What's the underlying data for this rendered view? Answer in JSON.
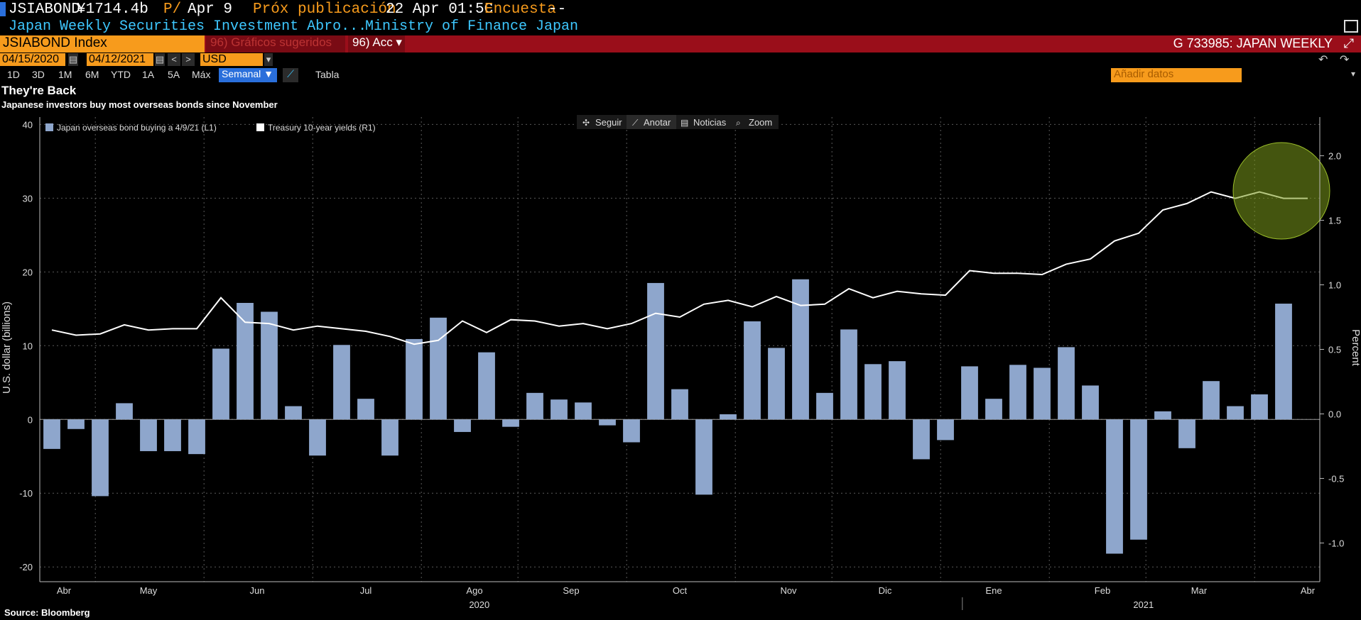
{
  "header": {
    "ticker": "JSIABOND",
    "value": "¥1714.4b",
    "p_label": "P/",
    "date": "Apr 9",
    "next_pub_label": "Próx publicación",
    "next_pub_value": "22 Apr 01:5C",
    "survey_label": "Encuesta",
    "survey_value": "--",
    "description": "Japan Weekly Securities Investment Abro...",
    "source_name": "Ministry of Finance Japan"
  },
  "security_bar": {
    "security": "JSIABOND Index",
    "suggested_charts": "96) Gráficos sugeridos",
    "actions": "96) Acc ▾",
    "right_text": "G 733985: JAPAN WEEKLY",
    "close_glyph": "⤢"
  },
  "date_bar": {
    "start_date": "04/15/2020",
    "end_date": "04/12/2021",
    "currency": "USD",
    "nav_prev": "<",
    "nav_next": ">",
    "undo": "↶",
    "redo": "↷"
  },
  "toolbar": {
    "periods": [
      "1D",
      "3D",
      "1M",
      "6M",
      "YTD",
      "1A",
      "5A",
      "Máx"
    ],
    "frequency": "Semanal ▼",
    "table_label": "Tabla",
    "add_data_placeholder": "Añadir datos",
    "menu_glyph": "▾"
  },
  "chart_tools": {
    "follow": "Seguir",
    "annotate": "Anotar",
    "news": "Noticias",
    "zoom": "Zoom"
  },
  "title": "They're Back",
  "subtitle": "Japanese investors buy most overseas bonds since November",
  "source": "Source: Bloomberg",
  "colors": {
    "bar": "#8ea6cc",
    "line": "#ffffff",
    "accent": "#f79b1c",
    "bar_header": "#9a0e1a",
    "highlight": "#7c9a1c"
  },
  "chart_data": {
    "type": "bar+line",
    "legend": [
      {
        "name": "Japan overseas bond buying  a 4/9/21 (L1)",
        "color": "#8ea6cc"
      },
      {
        "name": "Treasury 10-year yields (R1)",
        "color": "#ffffff"
      }
    ],
    "ylabel_left": "U.S. dollar (billions)",
    "ylabel_right": "Percent",
    "ylim_left": [
      -22,
      41
    ],
    "ylim_right": [
      -1.3,
      2.3
    ],
    "left_ticks": [
      40,
      30,
      20,
      10,
      0,
      -10,
      -20
    ],
    "right_ticks": [
      "2.0",
      "1.5",
      "1.0",
      "0.5",
      "0.0",
      "-0.5",
      "-1.0"
    ],
    "right_tick_values": [
      2.0,
      1.5,
      1.0,
      0.5,
      0.0,
      -0.5,
      -1.0
    ],
    "x_month_labels": [
      "Abr",
      "May",
      "Jun",
      "Jul",
      "Ago",
      "Sep",
      "Oct",
      "Nov",
      "Dic",
      "Ene",
      "Feb",
      "Mar",
      "Abr"
    ],
    "x_month_positions": [
      1,
      4.5,
      9,
      13.5,
      18,
      22,
      26.5,
      31,
      35,
      39.5,
      44,
      48,
      52.5
    ],
    "x_year_labels": [
      "2020",
      "2021"
    ],
    "x_year_positions": [
      18.2,
      45.7
    ],
    "bars": [
      -4,
      -1.3,
      -10.4,
      2.2,
      -4.3,
      -4.3,
      -4.7,
      9.6,
      15.8,
      14.6,
      1.8,
      -4.9,
      10.1,
      2.8,
      -4.9,
      10.9,
      13.8,
      -1.7,
      9.1,
      -1,
      3.6,
      2.7,
      2.3,
      -0.8,
      -3.1,
      18.5,
      4.1,
      -10.2,
      0.7,
      13.3,
      9.7,
      19,
      3.6,
      12.2,
      7.5,
      7.9,
      -5.4,
      -2.8,
      7.2,
      2.8,
      7.4,
      7,
      9.8,
      4.6,
      -18.2,
      -16.3,
      1.1,
      -3.9,
      5.2,
      1.8,
      3.4,
      15.7
    ],
    "line": [
      0.65,
      0.61,
      0.62,
      0.69,
      0.65,
      0.66,
      0.66,
      0.9,
      0.71,
      0.7,
      0.65,
      0.68,
      0.66,
      0.64,
      0.6,
      0.54,
      0.57,
      0.72,
      0.63,
      0.73,
      0.72,
      0.68,
      0.7,
      0.66,
      0.7,
      0.78,
      0.75,
      0.85,
      0.88,
      0.83,
      0.91,
      0.84,
      0.85,
      0.97,
      0.9,
      0.95,
      0.93,
      0.92,
      1.11,
      1.09,
      1.09,
      1.08,
      1.16,
      1.2,
      1.34,
      1.4,
      1.58,
      1.63,
      1.72,
      1.67,
      1.72,
      1.67,
      1.67
    ]
  }
}
